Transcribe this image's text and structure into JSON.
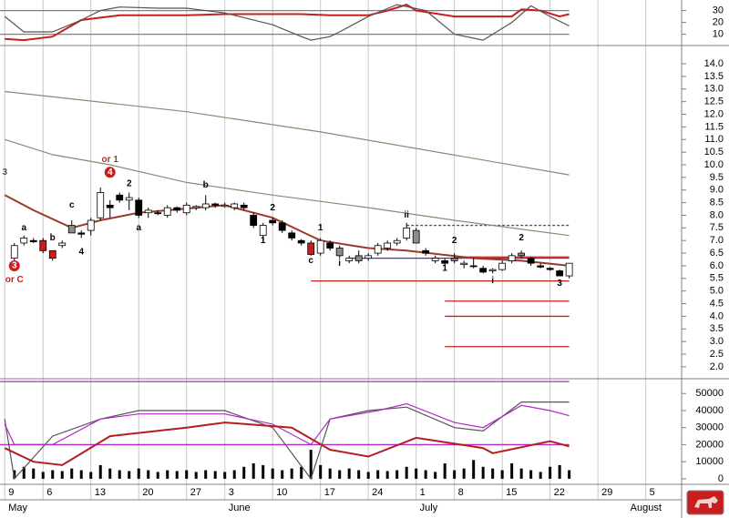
{
  "chart_data": [
    {
      "type": "line",
      "xlim": [
        -1.5,
        69.75
      ],
      "ylim": [
        2,
        37.4
      ],
      "yticks": [
        10,
        20,
        30
      ],
      "levels": [
        {
          "value": 30,
          "from": -1.5,
          "to": 58,
          "color": "#808080"
        },
        {
          "value": 10,
          "from": -1.5,
          "to": 58,
          "color": "#808080"
        }
      ],
      "series": [
        {
          "color": "#c81e1e",
          "x": [
            -1,
            1,
            4,
            7,
            9,
            11,
            15,
            18,
            22,
            27,
            30,
            33,
            37,
            39,
            41,
            42,
            46,
            49,
            52,
            53,
            55,
            57,
            58
          ],
          "values": [
            6,
            5,
            8,
            22,
            24,
            26,
            26,
            26,
            27,
            27,
            27,
            26,
            26,
            30,
            35,
            30,
            25,
            25,
            25,
            31,
            30,
            25,
            27
          ]
        },
        {
          "color": "#555555",
          "x": [
            -1,
            1,
            4,
            7,
            9,
            11,
            15,
            18,
            22,
            27,
            30,
            31,
            33,
            34,
            37,
            40,
            43,
            46,
            49,
            52,
            54,
            56,
            58
          ],
          "values": [
            25,
            12,
            12,
            22,
            30,
            33,
            32,
            32,
            28,
            18,
            8,
            5,
            8,
            12,
            25,
            35,
            30,
            10,
            5,
            20,
            34,
            25,
            17
          ]
        }
      ]
    },
    {
      "type": "candlestick",
      "xlim": [
        -1.5,
        69.75
      ],
      "ylim": [
        1.6,
        14.65
      ],
      "yticks": [
        {
          "value": 2,
          "label": "2.0"
        },
        {
          "value": 2.5,
          "label": "2.5"
        },
        {
          "value": 3,
          "label": "3.0"
        },
        {
          "value": 3.5,
          "label": "3.5"
        },
        {
          "value": 4,
          "label": "4.0"
        },
        {
          "value": 4.5,
          "label": "4.5"
        },
        {
          "value": 5,
          "label": "5.0"
        },
        {
          "value": 5.5,
          "label": "5.5"
        },
        {
          "value": 6,
          "label": "6.0"
        },
        {
          "value": 6.5,
          "label": "6.5"
        },
        {
          "value": 7,
          "label": "7.0"
        },
        {
          "value": 7.5,
          "label": "7.5"
        },
        {
          "value": 8,
          "label": "8.0"
        },
        {
          "value": 8.5,
          "label": "8.5"
        },
        {
          "value": 9,
          "label": "9.0"
        },
        {
          "value": 9.5,
          "label": "9.5"
        },
        {
          "value": 10,
          "label": "10.0"
        },
        {
          "value": 10.5,
          "label": "10.5"
        },
        {
          "value": 11,
          "label": "11.0"
        },
        {
          "value": 11.5,
          "label": "11.5"
        },
        {
          "value": 12,
          "label": "12.0"
        },
        {
          "value": 12.5,
          "label": "12.5"
        },
        {
          "value": 13,
          "label": "13.0"
        },
        {
          "value": 13.5,
          "label": "13.5"
        },
        {
          "value": 14,
          "label": "14.0"
        }
      ],
      "open": [
        6.3,
        6.9,
        7.0,
        7.0,
        6.6,
        6.8,
        7.6,
        7.3,
        7.4,
        7.9,
        8.3,
        8.8,
        8.6,
        8.6,
        8.1,
        8.1,
        8.0,
        8.3,
        8.1,
        8.3,
        8.3,
        8.4,
        8.4,
        8.45,
        8.4,
        8.0,
        7.6,
        7.8,
        7.7,
        7.3,
        7.0,
        6.9,
        6.5,
        6.9,
        6.7,
        6.3,
        6.4,
        6.3,
        6.5,
        6.7,
        6.9,
        7.1,
        7.4,
        6.6,
        6.3,
        6.2,
        6.2,
        6.1,
        6.0,
        5.9,
        5.8,
        5.85,
        6.2,
        6.4,
        6.3,
        6.0,
        5.9,
        5.8,
        5.6
      ],
      "high": [
        6.9,
        7.2,
        7.1,
        7.1,
        6.6,
        7.0,
        7.8,
        7.4,
        7.9,
        9.1,
        8.6,
        8.9,
        8.9,
        8.7,
        8.3,
        8.2,
        8.4,
        8.35,
        8.5,
        8.4,
        8.8,
        8.5,
        8.5,
        8.5,
        8.5,
        8.1,
        7.7,
        7.9,
        7.8,
        7.4,
        7.05,
        7.0,
        7.1,
        7.0,
        6.8,
        6.4,
        6.6,
        6.5,
        6.9,
        7.0,
        7.1,
        7.7,
        7.5,
        6.7,
        6.4,
        6.3,
        6.5,
        6.2,
        6.3,
        6.0,
        5.9,
        6.2,
        6.5,
        6.6,
        6.35,
        6.1,
        5.95,
        5.85,
        6.1
      ],
      "low": [
        6.2,
        6.8,
        6.9,
        6.5,
        6.2,
        6.7,
        7.3,
        7.1,
        7.2,
        7.8,
        7.9,
        8.5,
        8.2,
        7.9,
        7.9,
        8.0,
        7.9,
        8.1,
        8.0,
        8.2,
        8.2,
        8.3,
        8.3,
        8.2,
        8.2,
        7.5,
        7.0,
        7.6,
        7.3,
        7.0,
        6.8,
        6.4,
        6.4,
        6.6,
        6.3,
        6.1,
        6.1,
        6.2,
        6.4,
        6.6,
        6.8,
        7.0,
        6.9,
        6.4,
        6.1,
        6.0,
        6.1,
        5.9,
        5.9,
        5.7,
        5.7,
        5.8,
        6.1,
        6.3,
        6.0,
        5.9,
        5.8,
        5.6,
        5.5
      ],
      "close": [
        6.8,
        7.1,
        6.95,
        6.6,
        6.3,
        6.9,
        7.3,
        7.25,
        7.8,
        8.9,
        8.4,
        8.6,
        8.7,
        8.0,
        8.2,
        8.1,
        8.3,
        8.2,
        8.4,
        8.35,
        8.45,
        8.45,
        8.35,
        8.3,
        8.3,
        7.6,
        7.2,
        7.7,
        7.4,
        7.1,
        6.9,
        6.45,
        7.0,
        6.7,
        6.4,
        6.2,
        6.2,
        6.4,
        6.8,
        6.9,
        7.0,
        7.5,
        6.9,
        6.5,
        6.2,
        6.1,
        6.3,
        6.05,
        6.0,
        5.75,
        5.85,
        6.1,
        6.4,
        6.5,
        6.1,
        5.95,
        5.85,
        5.6,
        6.1
      ],
      "colors": [
        "#ffffff",
        "#ffffff",
        "#000000",
        "#c81e1e",
        "#c81e1e",
        "#ffffff",
        "#8c8c8c",
        "#000000",
        "#ffffff",
        "#ffffff",
        "#000000",
        "#000000",
        "#ffffff",
        "#000000",
        "#ffffff",
        "#000000",
        "#ffffff",
        "#000000",
        "#ffffff",
        "#ffffff",
        "#ffffff",
        "#000000",
        "#ffffff",
        "#ffffff",
        "#000000",
        "#000000",
        "#ffffff",
        "#000000",
        "#000000",
        "#000000",
        "#000000",
        "#c81e1e",
        "#ffffff",
        "#000000",
        "#8c8c8c",
        "#ffffff",
        "#8c8c8c",
        "#ffffff",
        "#ffffff",
        "#ffffff",
        "#ffffff",
        "#ffffff",
        "#8c8c8c",
        "#000000",
        "#ffffff",
        "#000000",
        "#8c8c8c",
        "#ffffff",
        "#000000",
        "#000000",
        "#ffffff",
        "#ffffff",
        "#ffffff",
        "#8c8c8c",
        "#000000",
        "#000000",
        "#000000",
        "#000000",
        "#ffffff"
      ],
      "series": [
        {
          "color": "#8a8a70",
          "x": [
            -1,
            18,
            32,
            58
          ],
          "values": [
            12.9,
            12.1,
            11.3,
            9.6
          ]
        },
        {
          "color": "#8a8a70",
          "x": [
            -1,
            4,
            10,
            18,
            27,
            37,
            46,
            58
          ],
          "values": [
            11.0,
            10.4,
            10.0,
            9.3,
            8.8,
            8.3,
            7.8,
            7.2
          ]
        },
        {
          "color": "#9b3a2a",
          "x": [
            -1,
            2,
            6,
            9,
            13,
            22,
            27,
            32,
            37,
            41,
            48,
            53,
            58
          ],
          "values": [
            8.8,
            8.2,
            7.5,
            7.8,
            8.1,
            8.4,
            7.9,
            7.0,
            6.7,
            6.6,
            6.3,
            6.2,
            6.0
          ]
        }
      ],
      "levels": [
        {
          "value": 5.4,
          "from": 31,
          "to": 58,
          "color": "#c81e1e"
        },
        {
          "value": 6.3,
          "from": 35,
          "to": 58,
          "color": "#3c3cb4"
        },
        {
          "value": 6.35,
          "from": 46,
          "to": 58,
          "color": "#c81e1e"
        },
        {
          "value": 7.6,
          "from": 41,
          "to": 58,
          "color": "#555555",
          "dash": true
        },
        {
          "value": 4.6,
          "from": 45,
          "to": 58,
          "color": "#c81e1e"
        },
        {
          "value": 4.0,
          "from": 45,
          "to": 58,
          "color": "#c81e1e"
        },
        {
          "value": 2.8,
          "from": 45,
          "to": 58,
          "color": "#c81e1e"
        }
      ],
      "annotations": [
        {
          "text": "3",
          "x": 0,
          "y": 6.0,
          "circle": true,
          "color": "#c81e1e"
        },
        {
          "text": "or C",
          "x": 0,
          "y": 5.45,
          "color": "#c81e1e"
        },
        {
          "text": "3",
          "x": -1,
          "y": 9.7,
          "color": "#555555"
        },
        {
          "text": "a",
          "x": 1,
          "y": 7.5,
          "color": "#000000"
        },
        {
          "text": "b",
          "x": 4,
          "y": 7.1,
          "color": "#000000"
        },
        {
          "text": "c",
          "x": 6,
          "y": 8.4,
          "color": "#000000"
        },
        {
          "text": "4",
          "x": 7,
          "y": 6.55,
          "color": "#000000"
        },
        {
          "text": "4",
          "x": 10,
          "y": 9.7,
          "circle": true,
          "color": "#c81e1e"
        },
        {
          "text": "or 1",
          "x": 10,
          "y": 10.2,
          "color": "#9b3a2a"
        },
        {
          "text": "2",
          "x": 12,
          "y": 9.25,
          "color": "#000000"
        },
        {
          "text": "a",
          "x": 13,
          "y": 7.5,
          "color": "#000000"
        },
        {
          "text": "b",
          "x": 20,
          "y": 9.2,
          "color": "#000000"
        },
        {
          "text": "1",
          "x": 26,
          "y": 7.0,
          "color": "#000000"
        },
        {
          "text": "2",
          "x": 27,
          "y": 8.3,
          "color": "#000000"
        },
        {
          "text": "c",
          "x": 31,
          "y": 6.2,
          "color": "#000000"
        },
        {
          "text": "1",
          "x": 32,
          "y": 7.5,
          "color": "#000000"
        },
        {
          "text": "i",
          "x": 34,
          "y": 6.1,
          "color": "#000000"
        },
        {
          "text": "ii",
          "x": 41,
          "y": 8.0,
          "color": "#000000"
        },
        {
          "text": "1",
          "x": 45,
          "y": 5.9,
          "color": "#000000"
        },
        {
          "text": "2",
          "x": 46,
          "y": 7.0,
          "color": "#000000"
        },
        {
          "text": "i",
          "x": 50,
          "y": 5.4,
          "color": "#000000"
        },
        {
          "text": "2",
          "x": 53,
          "y": 7.1,
          "color": "#000000"
        },
        {
          "text": "3",
          "x": 57,
          "y": 5.3,
          "color": "#000000"
        }
      ]
    },
    {
      "type": "volume",
      "xlim": [
        -1.5,
        69.75
      ],
      "ylim": [
        -2200,
        57600
      ],
      "yticks": [
        0,
        10000,
        20000,
        30000,
        40000,
        50000
      ],
      "bar_color": "#000000",
      "volume": [
        5000,
        7000,
        6000,
        4000,
        5000,
        4500,
        6000,
        5000,
        4000,
        8000,
        6000,
        5000,
        4500,
        6000,
        5000,
        4000,
        5000,
        4500,
        5000,
        4000,
        5000,
        4500,
        4000,
        5000,
        7000,
        9000,
        8000,
        6000,
        5000,
        6000,
        7000,
        17000,
        8000,
        6000,
        5000,
        6000,
        5000,
        4000,
        5000,
        4500,
        5000,
        7000,
        6000,
        5000,
        4000,
        9000,
        5000,
        6000,
        11000,
        7000,
        6000,
        5000,
        9000,
        6000,
        5000,
        4000,
        7000,
        8000,
        5000
      ],
      "levels": [
        {
          "value": 20000,
          "from": -1.5,
          "to": 58,
          "color": "#b428c8"
        },
        {
          "value": 57000,
          "from": -1.5,
          "to": 58,
          "color": "#b428c8"
        }
      ],
      "series": [
        {
          "color": "#555555",
          "x": [
            -1,
            0,
            4,
            9,
            13,
            22,
            27,
            31,
            33,
            37,
            41,
            46,
            49,
            53,
            58
          ],
          "values": [
            35000,
            0,
            25000,
            35000,
            40000,
            40000,
            30000,
            0,
            35000,
            40000,
            42000,
            30000,
            28000,
            45000,
            45000
          ]
        },
        {
          "color": "#b428c8",
          "x": [
            -1,
            0,
            4,
            9,
            13,
            22,
            27,
            31,
            33,
            38,
            41,
            46,
            49,
            53,
            56,
            58
          ],
          "values": [
            32000,
            20000,
            20000,
            35000,
            38000,
            38000,
            32000,
            20000,
            35000,
            40000,
            44000,
            33000,
            30000,
            43000,
            40000,
            37000
          ]
        },
        {
          "color": "#b41e1e",
          "x": [
            -1,
            2,
            5,
            10,
            18,
            22,
            29,
            33,
            37,
            42,
            49,
            50,
            56,
            58
          ],
          "values": [
            18000,
            10000,
            8000,
            25000,
            30000,
            33000,
            30000,
            17000,
            13000,
            24000,
            18000,
            15000,
            22000,
            19000
          ]
        }
      ],
      "xticks": [
        {
          "value": -1,
          "label": "9"
        },
        {
          "value": 3,
          "label": "6"
        },
        {
          "value": 8,
          "label": "13"
        },
        {
          "value": 13,
          "label": "20"
        },
        {
          "value": 18,
          "label": "27"
        },
        {
          "value": 22,
          "label": "3"
        },
        {
          "value": 27,
          "label": "10"
        },
        {
          "value": 32,
          "label": "17"
        },
        {
          "value": 37,
          "label": "24"
        },
        {
          "value": 42,
          "label": "1"
        },
        {
          "value": 46,
          "label": "8"
        },
        {
          "value": 51,
          "label": "15"
        },
        {
          "value": 56,
          "label": "22"
        },
        {
          "value": 61,
          "label": "29"
        },
        {
          "value": 66,
          "label": "5"
        }
      ],
      "months": [
        {
          "value": -1,
          "label": "May"
        },
        {
          "value": 22,
          "label": "June"
        },
        {
          "value": 42,
          "label": "July"
        },
        {
          "value": 64,
          "label": "August"
        }
      ]
    }
  ]
}
